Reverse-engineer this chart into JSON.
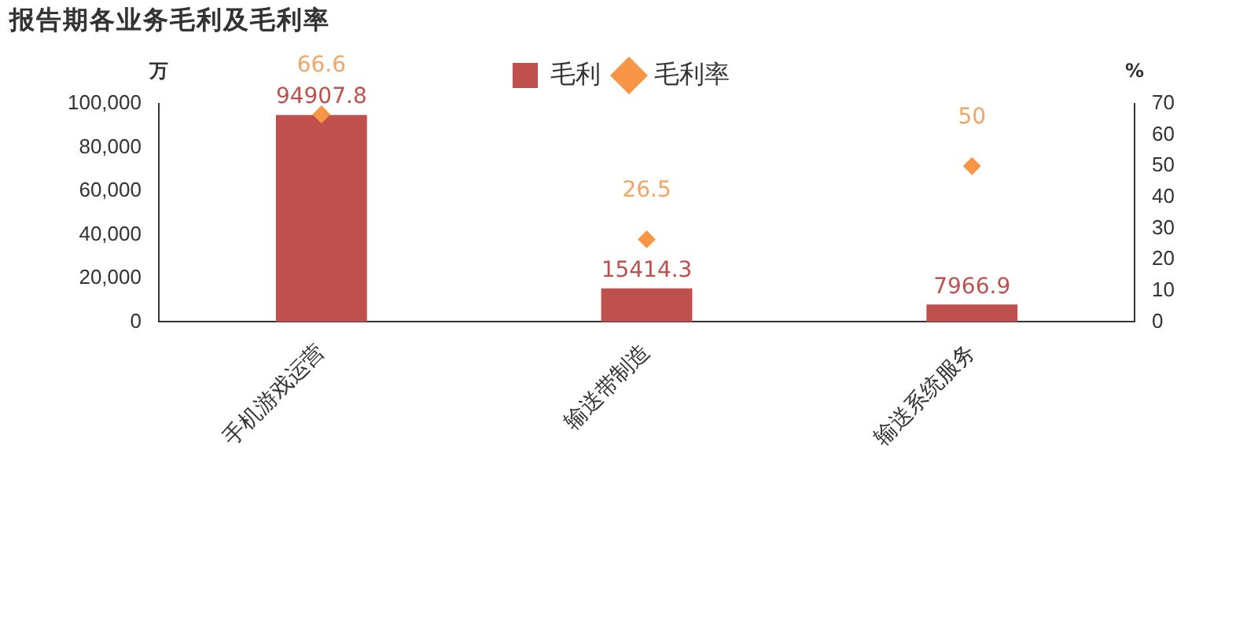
{
  "chart_data": {
    "type": "bar",
    "title": "报告期各业务毛利及毛利率",
    "ylabel": "万",
    "y2label": "%",
    "categories": [
      "手机游戏运营",
      "输送带制造",
      "输送系统服务"
    ],
    "series": [
      {
        "name": "毛利",
        "color": "#c0504d",
        "values": [
          94907.8,
          15414.3,
          7966.9
        ]
      },
      {
        "name": "毛利率",
        "type": "scatter",
        "axis": "y2",
        "marker": "diamond",
        "color": "#f79646",
        "values": [
          66.6,
          26.5,
          50
        ]
      }
    ],
    "ylim": [
      0,
      100000
    ],
    "yticks": [
      0,
      {
        "value": 20000,
        "label": "20,000"
      },
      {
        "value": 40000,
        "label": "40,000"
      },
      {
        "value": 60000,
        "label": "60,000"
      },
      {
        "value": 80000,
        "label": "80,000"
      },
      {
        "value": 100000,
        "label": "100,000"
      }
    ],
    "y2lim": [
      0,
      70
    ],
    "y2ticks": [
      0,
      10,
      20,
      30,
      40,
      50,
      60,
      70
    ],
    "data_labels": true,
    "grid": false,
    "legend": "top"
  }
}
